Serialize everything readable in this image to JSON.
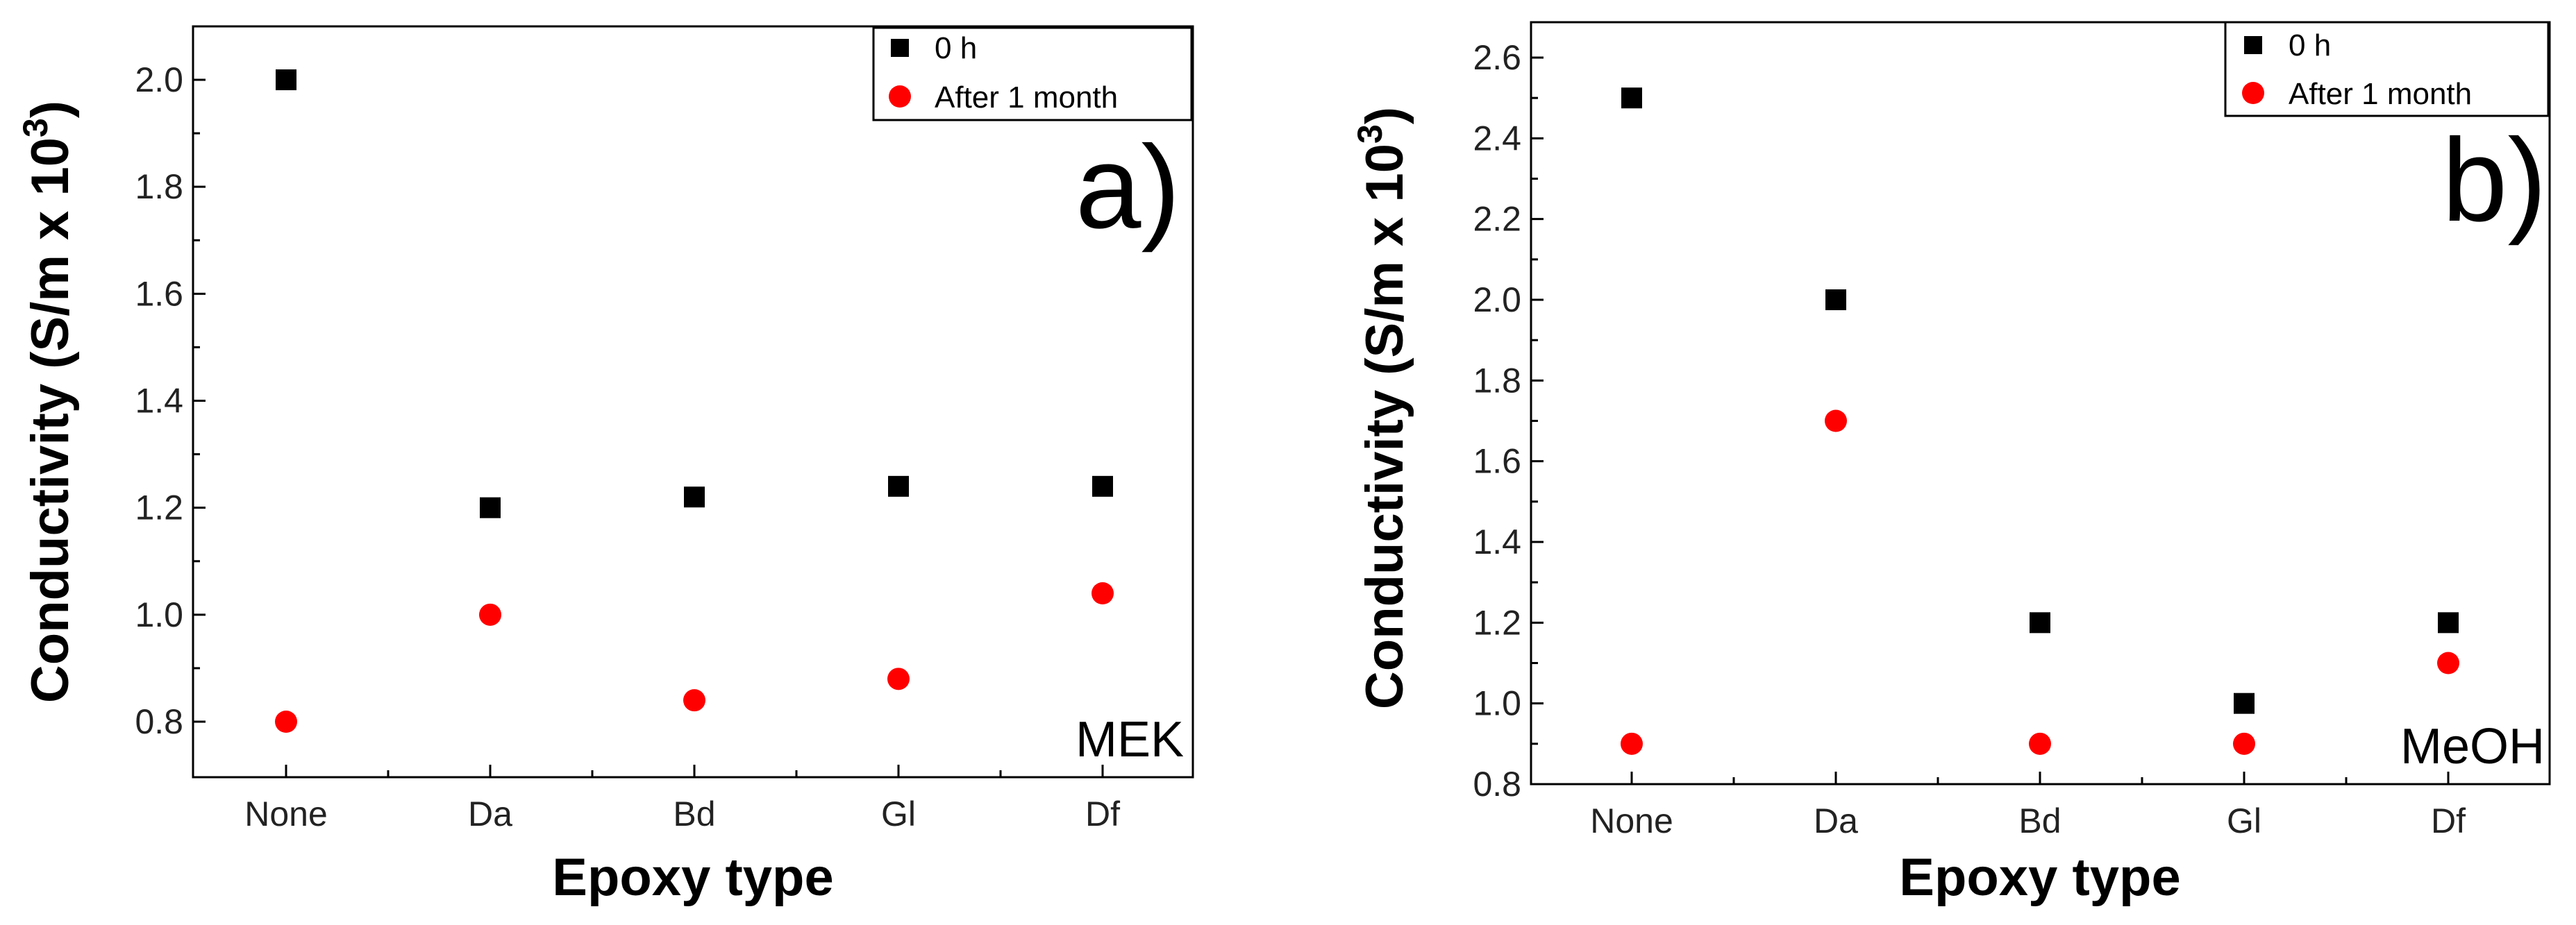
{
  "chart_data": [
    {
      "type": "scatter",
      "panel_label": "a)",
      "solvent": "MEK",
      "categories": [
        "None",
        "Da",
        "Bd",
        "Gl",
        "Df"
      ],
      "xlabel": "Epoxy type",
      "ylabel_main": "Conductivity (S/m x 10",
      "ylabel_sup": "3",
      "ylabel_close": ")",
      "ylim": [
        0.7,
        2.1
      ],
      "y_ticks": [
        0.8,
        1.0,
        1.2,
        1.4,
        1.6,
        1.8,
        2.0
      ],
      "y_tick_labels": [
        "0.8",
        "1.0",
        "1.2",
        "1.4",
        "1.6",
        "1.8",
        "2.0"
      ],
      "legend_position": "top-right",
      "series": [
        {
          "name": "0 h",
          "marker": "square",
          "color": "#000000",
          "values": [
            2.0,
            1.2,
            1.22,
            1.24,
            1.24
          ]
        },
        {
          "name": "After 1 month",
          "marker": "circle",
          "color": "#ff0000",
          "values": [
            0.8,
            1.0,
            0.84,
            0.88,
            1.04
          ]
        }
      ]
    },
    {
      "type": "scatter",
      "panel_label": "b)",
      "solvent": "MeOH",
      "categories": [
        "None",
        "Da",
        "Bd",
        "Gl",
        "Df"
      ],
      "xlabel": "Epoxy type",
      "ylabel_main": "Conductivity (S/m x 10",
      "ylabel_sup": "3",
      "ylabel_close": ")",
      "ylim": [
        0.8,
        2.7
      ],
      "y_ticks": [
        0.8,
        1.0,
        1.2,
        1.4,
        1.6,
        1.8,
        2.0,
        2.2,
        2.4,
        2.6
      ],
      "y_tick_labels": [
        "0.8",
        "1.0",
        "1.2",
        "1.4",
        "1.6",
        "1.8",
        "2.0",
        "2.2",
        "2.4",
        "2.6"
      ],
      "legend_position": "top-right",
      "series": [
        {
          "name": "0 h",
          "marker": "square",
          "color": "#000000",
          "values": [
            2.5,
            2.0,
            1.2,
            1.0,
            1.2
          ]
        },
        {
          "name": "After 1 month",
          "marker": "circle",
          "color": "#ff0000",
          "values": [
            0.9,
            1.7,
            0.9,
            0.9,
            1.1
          ]
        }
      ]
    }
  ]
}
